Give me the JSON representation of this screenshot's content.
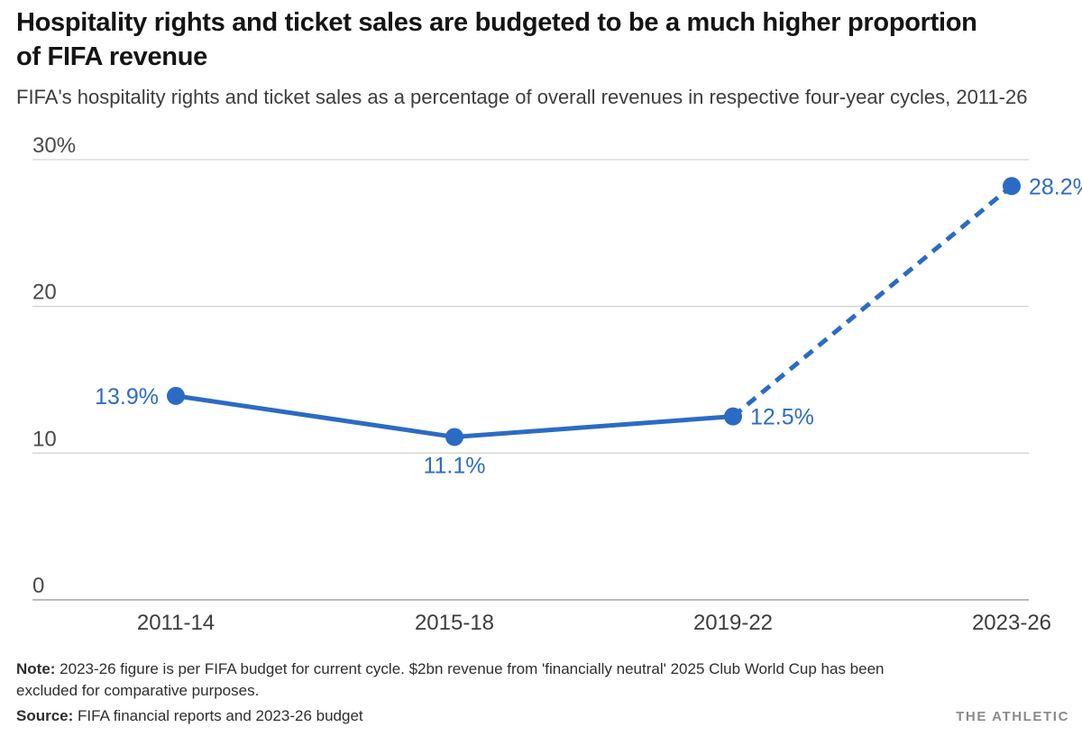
{
  "chart_data": {
    "type": "line",
    "title": "Hospitality rights and ticket sales are budgeted to be a much higher proportion of FIFA revenue",
    "subtitle": "FIFA's hospitality rights and ticket sales as a percentage of overall revenues in respective four-year cycles, 2011-26",
    "categories": [
      "2011-14",
      "2015-18",
      "2019-22",
      "2023-26"
    ],
    "series": [
      {
        "name": "Hospitality rights and ticket sales (% of overall revenue)",
        "values": [
          13.9,
          11.1,
          12.5,
          28.2
        ]
      }
    ],
    "point_labels": [
      "13.9%",
      "11.1%",
      "12.5%",
      "28.2%"
    ],
    "label_positions": [
      "left",
      "below",
      "right",
      "right"
    ],
    "dashed_from_index": 2,
    "dashed_meaning": "final segment (2019-22 to 2023-26) drawn dashed because 2023-26 is budgeted, not actual",
    "xlabel": "",
    "ylabel": "",
    "ylim": [
      0,
      30
    ],
    "yticks": [
      0,
      10,
      20,
      30
    ],
    "ytick_labels": [
      "0",
      "10",
      "20",
      "30%"
    ],
    "grid": "horizontal",
    "legend": "none",
    "colors": {
      "line": "#2c6bc3",
      "point": "#2c6bc3",
      "point_label": "#2e6cc4",
      "grid": "#d4d4d4",
      "zero_line": "#bbbbbb",
      "tick_text": "#4a4a4a",
      "axis_text": "#3d3d3d"
    }
  },
  "footer": {
    "note_label": "Note:",
    "note_text": " 2023-26 figure is per FIFA budget for current cycle. $2bn revenue from 'financially neutral' 2025 Club World Cup has been excluded for comparative purposes.",
    "source_label": "Source:",
    "source_text": " FIFA financial reports and 2023-26 budget",
    "brand": "THE ATHLETIC"
  }
}
